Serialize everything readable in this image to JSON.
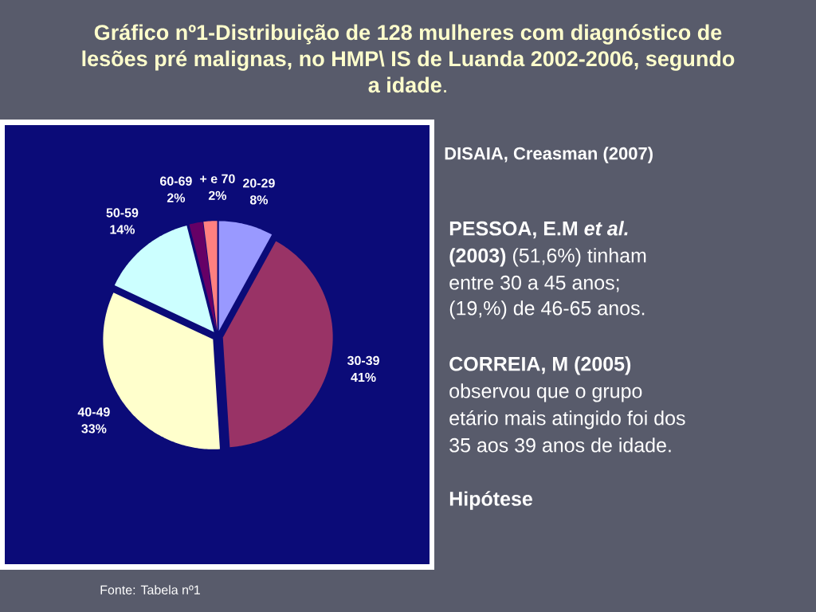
{
  "chart_data": {
    "type": "pie",
    "title": "**Gráfico nº1-Distribuição de 128 mulheres com diagnóstico de lesões pré malignas, no HMP\\ IS de Luanda 2002-2006, segundo a idade**.",
    "categories": [
      "20-29",
      "30-39",
      "40-49",
      "50-59",
      "60-69",
      "+ e 70"
    ],
    "values": [
      8,
      41,
      33,
      14,
      2,
      2
    ],
    "colors": [
      "#9999ff",
      "#993366",
      "#ffffcc",
      "#ccffff",
      "#660066",
      "#ff8080"
    ],
    "value_labels": [
      "8%",
      "41%",
      "33%",
      "14%",
      "2%",
      "2%"
    ],
    "annotations": [
      "DISAIA, Creasman (2007)",
      "**PESSOA, E.M *et al.* (2003)** (51,6%) tinham entre 30 a 45 anos;",
      "(19,%) de 46-65 anos.",
      "**CORREIA, M (2005)** observou que o grupo etário mais atingido foi dos 35 aos 39 anos de idade.",
      "Hipótese",
      "Fonte: Tabela nº1"
    ]
  }
}
